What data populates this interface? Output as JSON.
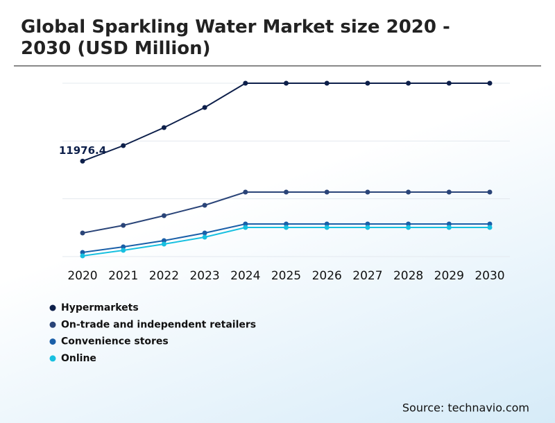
{
  "chart_data": {
    "type": "line",
    "title": "Global Sparkling Water Market size 2020 - 2030 (USD Million)",
    "categories": [
      "2020",
      "2021",
      "2022",
      "2023",
      "2024",
      "2025",
      "2026",
      "2027",
      "2028",
      "2029",
      "2030"
    ],
    "series": [
      {
        "name": "Hypermarkets",
        "color": "#0d1f4a",
        "values": [
          11976.4,
          13920,
          16182,
          18705,
          21750,
          21750,
          21750,
          21750,
          21750,
          21750,
          21750
        ]
      },
      {
        "name": "On-trade and independent retailers",
        "color": "#2a4478",
        "values": [
          2958,
          3915,
          5133,
          6438,
          8091,
          8091,
          8091,
          8091,
          8091,
          8091,
          8091
        ]
      },
      {
        "name": "Convenience stores",
        "color": "#1a5fa8",
        "values": [
          522,
          1218,
          2001,
          2958,
          4089,
          4089,
          4089,
          4089,
          4089,
          4089,
          4089
        ]
      },
      {
        "name": "Online",
        "color": "#17c0e0",
        "values": [
          87,
          783,
          1566,
          2436,
          3654,
          3654,
          3654,
          3654,
          3654,
          3654,
          3654
        ]
      }
    ],
    "ylim": [
      0,
      21750
    ],
    "yticks": [
      0,
      7250,
      14500,
      21750
    ],
    "grid": true,
    "source": "Source: technavio.com"
  }
}
